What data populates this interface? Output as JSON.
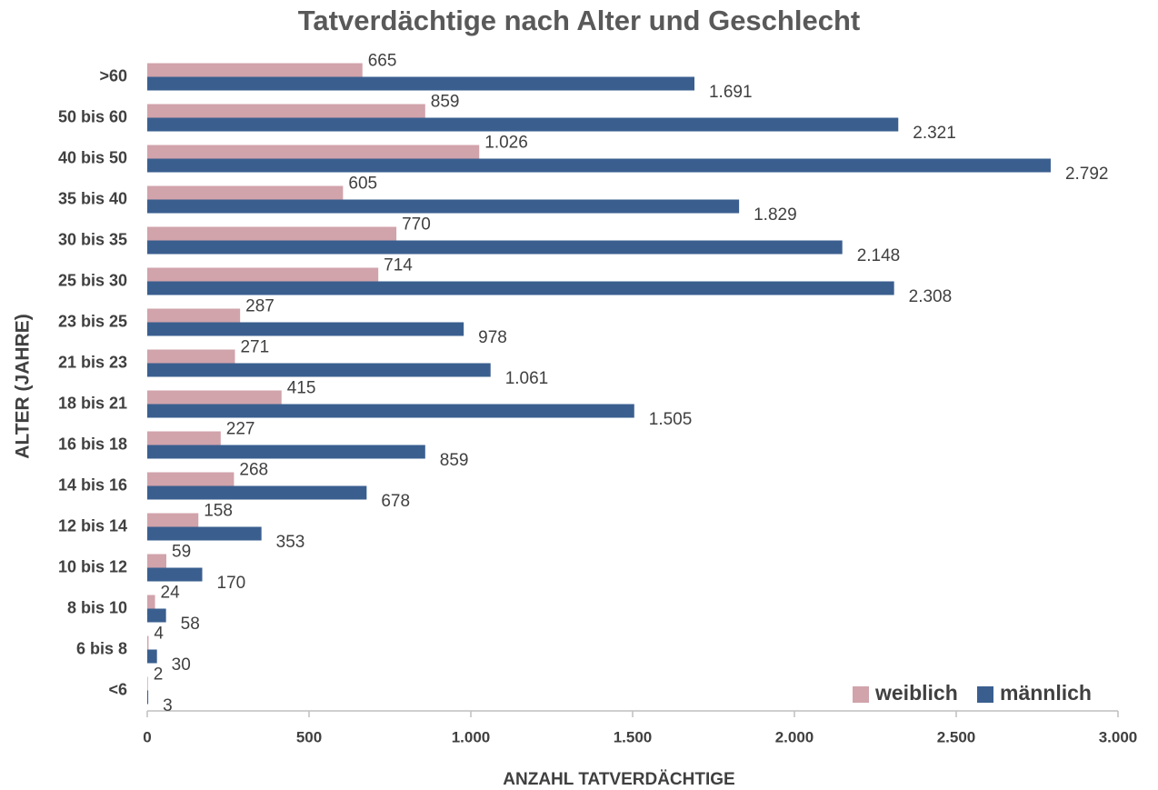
{
  "chart_data": {
    "type": "hbar",
    "title": "Tatverdächtige nach Alter und Geschlecht",
    "xlabel": "ANZAHL TATVERDÄCHTIGE",
    "ylabel": "ALTER (JAHRE)",
    "categories": [
      ">60",
      "50 bis 60",
      "40 bis 50",
      "35 bis 40",
      "30 bis 35",
      "25 bis 30",
      "23 bis 25",
      "21 bis 23",
      "18 bis 21",
      "16 bis 18",
      "14 bis 16",
      "12 bis 14",
      "10 bis 12",
      "8 bis 10",
      "6 bis 8",
      "<6"
    ],
    "series": [
      {
        "name": "weiblich",
        "color": "#d1a3ab",
        "values": [
          665,
          859,
          1026,
          605,
          770,
          714,
          287,
          271,
          415,
          227,
          268,
          158,
          59,
          24,
          4,
          2
        ],
        "value_labels": [
          "665",
          "859",
          "1.026",
          "605",
          "770",
          "714",
          "287",
          "271",
          "415",
          "227",
          "268",
          "158",
          "59",
          "24",
          "4",
          "2"
        ]
      },
      {
        "name": "männlich",
        "color": "#3a5f8f",
        "values": [
          1691,
          2321,
          2792,
          1829,
          2148,
          2308,
          978,
          1061,
          1505,
          859,
          678,
          353,
          170,
          58,
          30,
          3
        ],
        "value_labels": [
          "1.691",
          "2.321",
          "2.792",
          "1.829",
          "2.148",
          "2.308",
          "978",
          "1.061",
          "1.505",
          "859",
          "678",
          "353",
          "170",
          "58",
          "30",
          "3"
        ]
      }
    ],
    "xlim": [
      0,
      3000
    ],
    "xticks": [
      0,
      500,
      {
        "value": 1000,
        "label": "1.000"
      },
      {
        "value": 1500,
        "label": "1.500"
      },
      {
        "value": 2000,
        "label": "2.000"
      },
      {
        "value": 2500,
        "label": "2.500"
      },
      {
        "value": 3000,
        "label": "3.000"
      }
    ],
    "legend": "lower right"
  }
}
